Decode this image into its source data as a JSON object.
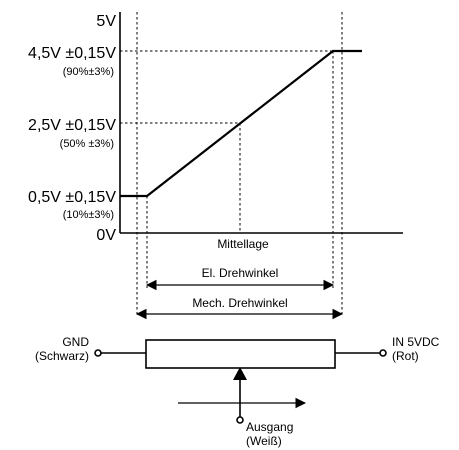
{
  "y_labels": {
    "max": "5V",
    "high": "4,5V ±0,15V",
    "high_pct": "(90%±3%)",
    "mid": "2,5V ±0,15V",
    "mid_pct": "(50% ±3%)",
    "low": "0,5V ±0,15V",
    "low_pct": "(10%±3%)",
    "zero": "0V"
  },
  "x_label": "Mittellage",
  "el_angle_label": "El. Drehwinkel",
  "mech_angle_label": "Mech. Drehwinkel",
  "terminals": {
    "gnd": "GND",
    "gnd_color": "(Schwarz)",
    "in": "IN 5VDC",
    "in_color": "(Rot)",
    "out": "Ausgang",
    "out_color": "(Weiß)"
  }
}
